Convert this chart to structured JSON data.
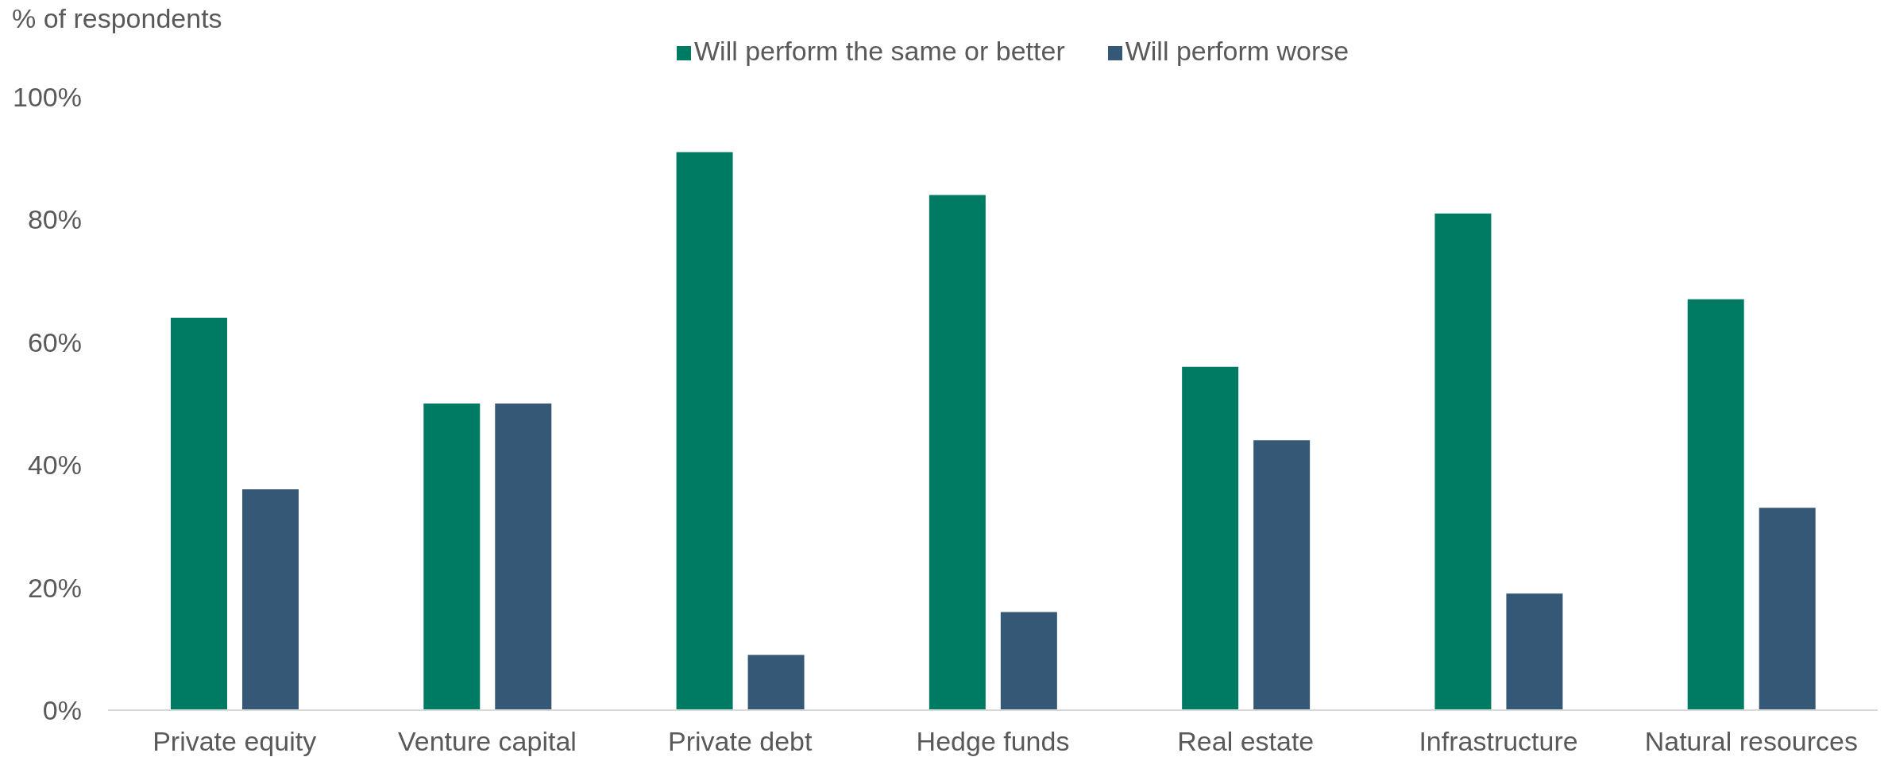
{
  "chart_data": {
    "type": "bar",
    "ylabel": "% of respondents",
    "categories": [
      "Private equity",
      "Venture capital",
      "Private debt",
      "Hedge funds",
      "Real estate",
      "Infrastructure",
      "Natural resources"
    ],
    "series": [
      {
        "name": "Will perform the same or better",
        "color": "#007b63",
        "values": [
          64,
          50,
          91,
          84,
          56,
          81,
          67
        ]
      },
      {
        "name": "Will perform worse",
        "color": "#365877",
        "values": [
          36,
          50,
          9,
          16,
          44,
          19,
          33
        ]
      }
    ],
    "ylim": [
      0,
      100
    ],
    "yticks": [
      {
        "value": 0,
        "label": "0%"
      },
      {
        "value": 20,
        "label": "20%"
      },
      {
        "value": 40,
        "label": "40%"
      },
      {
        "value": 60,
        "label": "60%"
      },
      {
        "value": 80,
        "label": "80%"
      },
      {
        "value": 100,
        "label": "100%"
      }
    ],
    "legend": "top"
  }
}
